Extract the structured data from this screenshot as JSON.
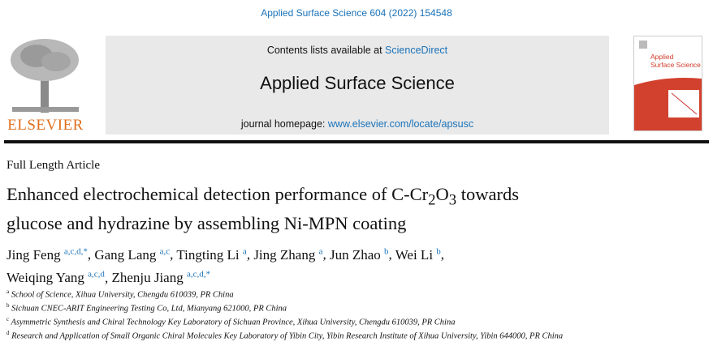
{
  "journal_ref": "Applied Surface Science 604 (2022) 154548",
  "header": {
    "avail_prefix": "Contents lists available at ",
    "avail_link": "ScienceDirect",
    "journal_title": "Applied Surface Science",
    "homepage_prefix": "journal homepage: ",
    "homepage_link": "www.elsevier.com/locate/apsusc",
    "publisher": "ELSEVIER",
    "cover_title": "Applied Surface Science"
  },
  "article_type": "Full Length Article",
  "title": {
    "line1_pre": "Enhanced electrochemical detection performance of C-Cr",
    "sub1": "2",
    "mid": "O",
    "sub2": "3",
    "line1_post": " towards",
    "line2": "glucose and hydrazine by assembling Ni-MPN coating"
  },
  "authors": [
    {
      "name": "Jing Feng",
      "aff": "a,c,d,*"
    },
    {
      "name": "Gang Lang",
      "aff": "a,c"
    },
    {
      "name": "Tingting Li",
      "aff": "a"
    },
    {
      "name": "Jing Zhang",
      "aff": "a"
    },
    {
      "name": "Jun Zhao",
      "aff": "b"
    },
    {
      "name": "Wei Li",
      "aff": "b"
    },
    {
      "name": "Weiqing Yang",
      "aff": "a,c,d"
    },
    {
      "name": "Zhenju Jiang",
      "aff": "a,c,d,*"
    }
  ],
  "affiliations": [
    {
      "key": "a",
      "text": "School of Science, Xihua University, Chengdu 610039, PR China"
    },
    {
      "key": "b",
      "text": "Sichuan CNEC-ARIT Engineering Testing Co, Ltd, Mianyang 621000, PR China"
    },
    {
      "key": "c",
      "text": "Asymmetric Synthesis and Chiral Technology Key Laboratory of Sichuan Province, Xihua University, Chengdu 610039, PR China"
    },
    {
      "key": "d",
      "text": "Research and Application of Small Organic Chiral Molecules Key Laboratory of Yibin City, Yibin Research Institute of Xihua University, Yibin 644000, PR China"
    }
  ]
}
